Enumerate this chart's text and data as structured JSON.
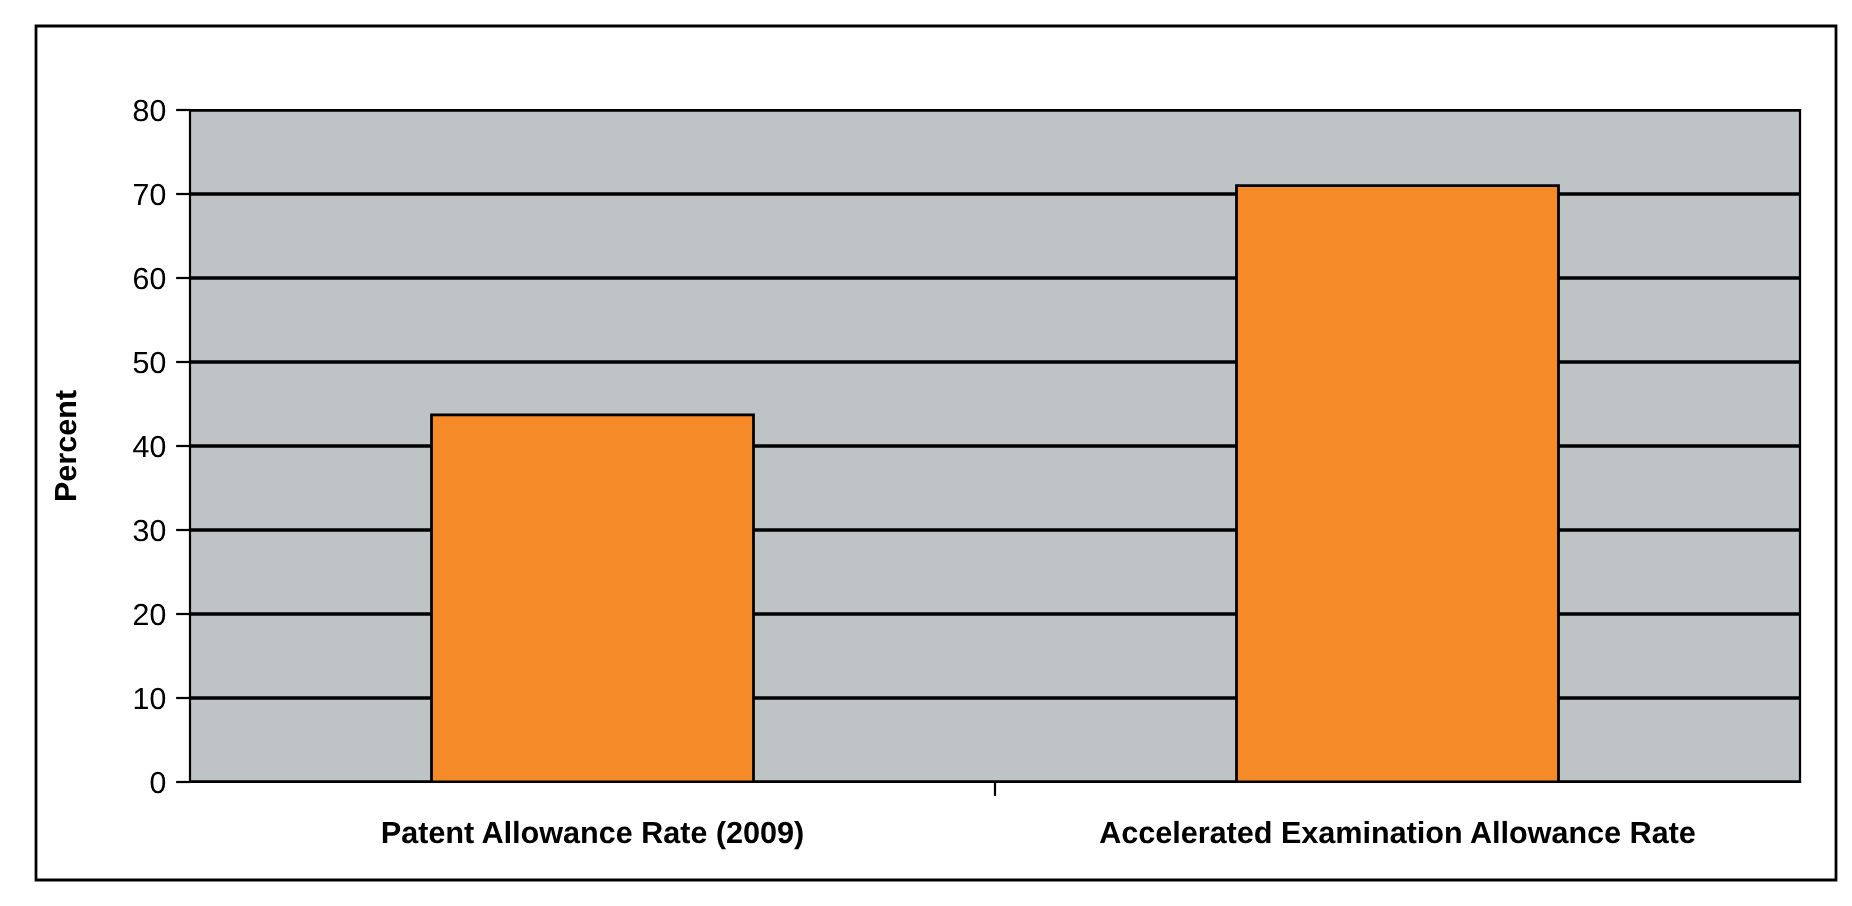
{
  "chart_data": {
    "type": "bar",
    "ylabel": "Percent",
    "categories": [
      "Patent Allowance Rate (2009)",
      "Accelerated Examination Allowance Rate"
    ],
    "values": [
      43.7,
      71
    ],
    "color": "#f58a28",
    "ylim": [
      0,
      80
    ],
    "yticks": [
      0,
      10,
      20,
      30,
      40,
      50,
      60,
      70,
      80
    ],
    "grid": "y"
  }
}
